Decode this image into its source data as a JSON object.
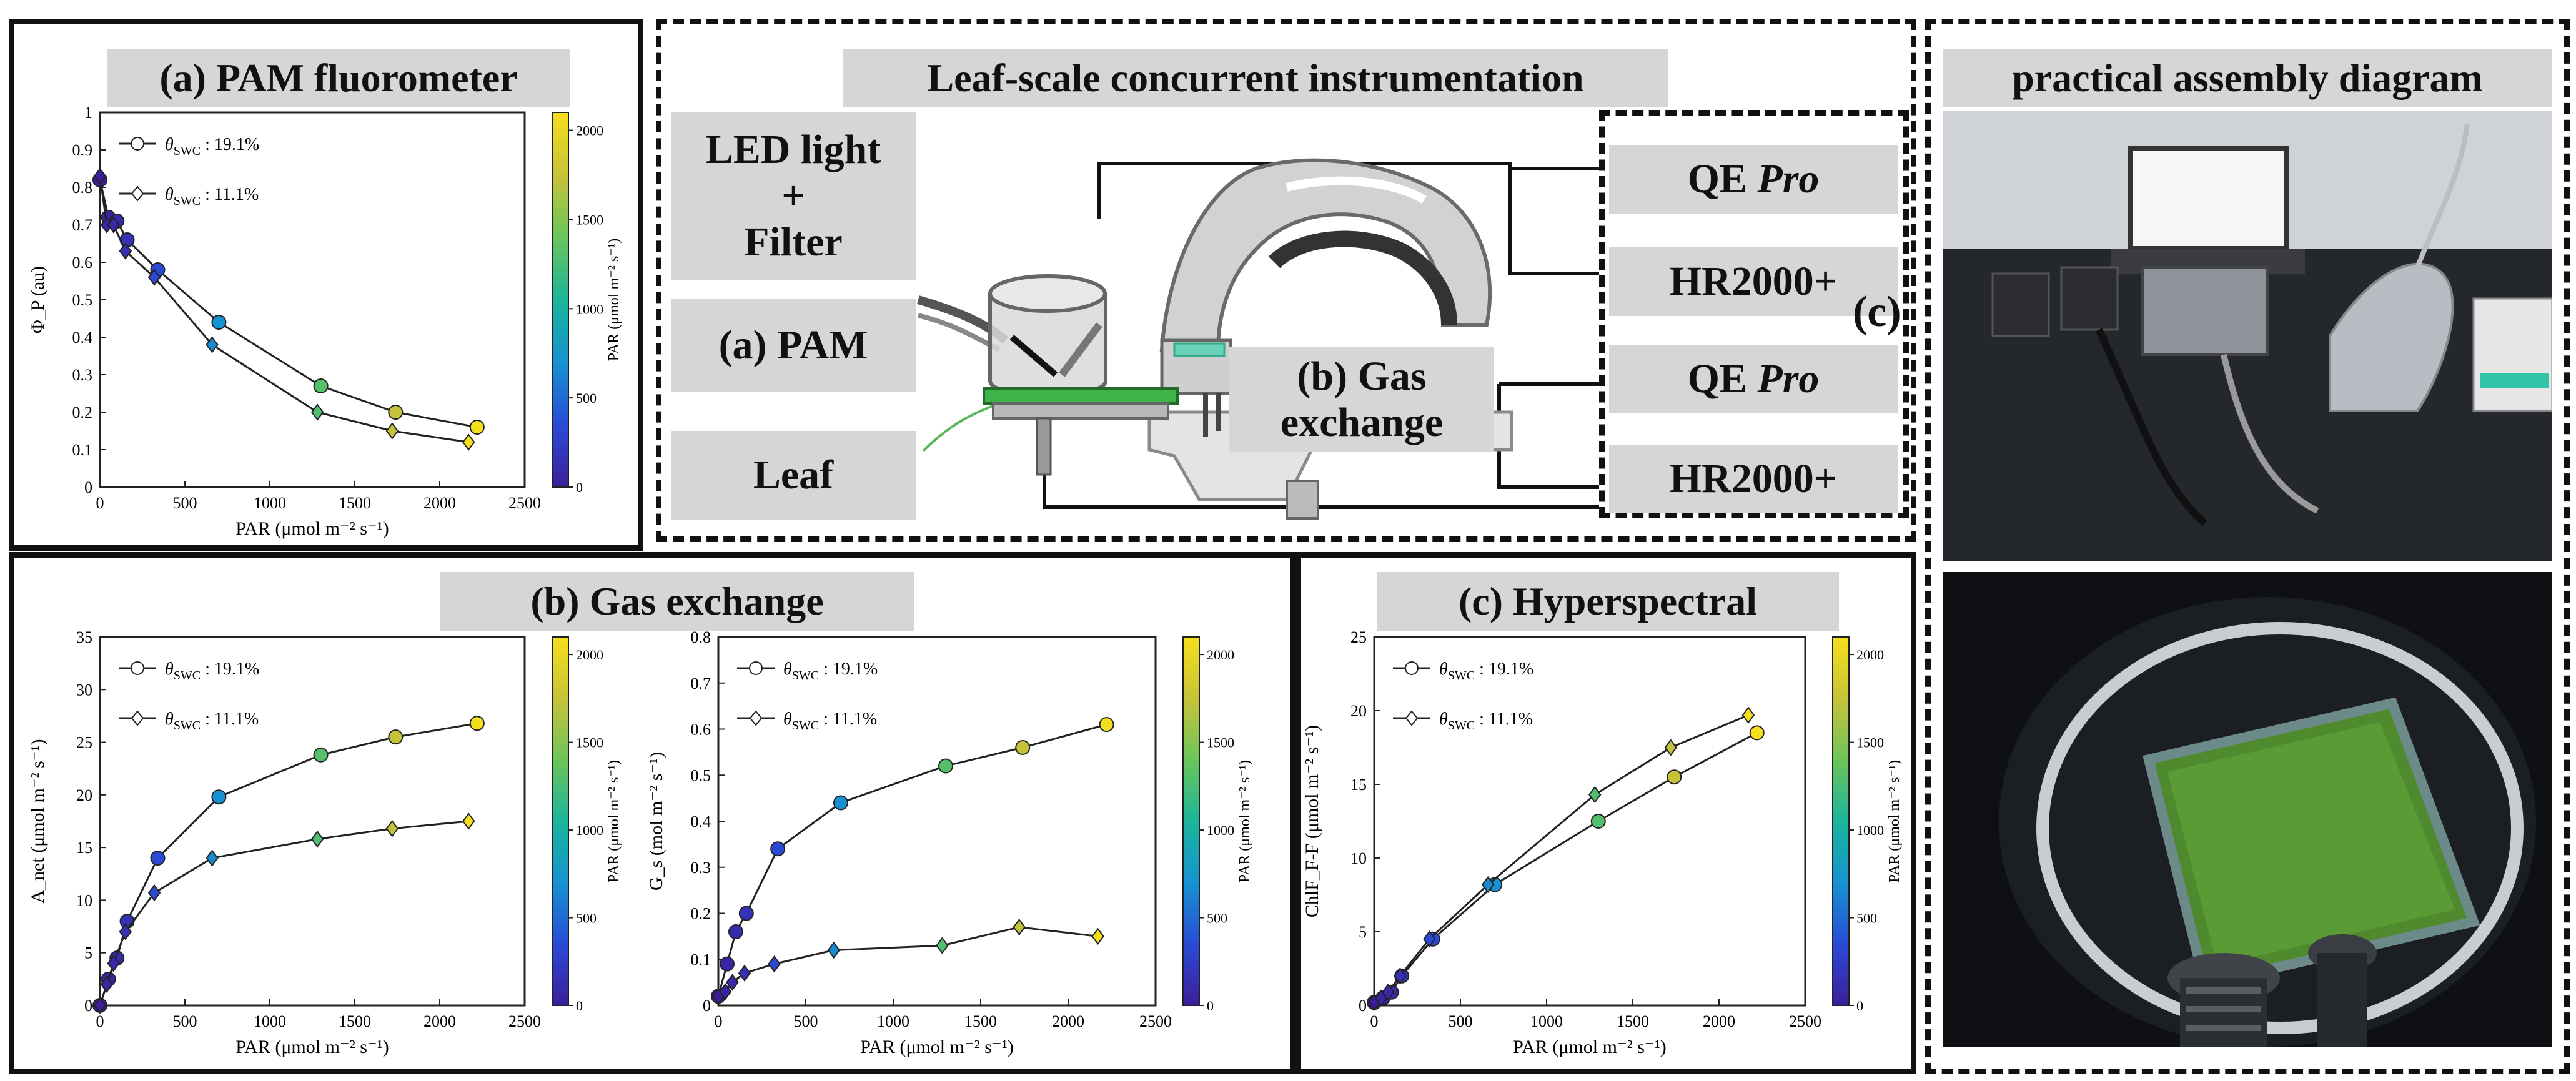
{
  "panels": {
    "pam": {
      "title": "(a) PAM fluorometer"
    },
    "center": {
      "title": "Leaf-scale concurrent instrumentation"
    },
    "assembly": {
      "title": "practical assembly diagram"
    },
    "gas": {
      "title": "(b) Gas exchange"
    },
    "hyper": {
      "title": "(c) Hyperspectral"
    }
  },
  "boxes": {
    "led": [
      "LED light",
      "+",
      "Filter"
    ],
    "pam": "(a) PAM",
    "leaf": "Leaf",
    "gas": [
      "(b) Gas",
      "exchange"
    ],
    "qe1": "QE",
    "qe1_italic": "Pro",
    "hr1": "HR2000+",
    "qe2": "QE",
    "qe2_italic": "Pro",
    "hr2": "HR2000+",
    "c_label": "(c)"
  },
  "legend": {
    "series1_prefix": "θ",
    "series1_sub": "SWC",
    "series1_text": " : 19.1%",
    "series2_prefix": "θ",
    "series2_sub": "SWC",
    "series2_text": " : 11.1%"
  },
  "colorbar": {
    "label": "PAR (μmol m⁻² s⁻¹)",
    "ticks": [
      0,
      500,
      1000,
      1500,
      2000
    ],
    "range": [
      0,
      2100
    ],
    "colors": [
      "#3d1e9a",
      "#2a4bd6",
      "#1692d2",
      "#1bb59a",
      "#6bc55a",
      "#c8c338",
      "#f5df1c"
    ]
  },
  "chart_data": [
    {
      "id": "pam",
      "type": "line",
      "xlabel": "PAR (μmol m⁻² s⁻¹)",
      "ylabel": "Φ_P (au)",
      "xlim": [
        0,
        2500
      ],
      "ylim": [
        0,
        1
      ],
      "xticks": [
        0,
        500,
        1000,
        1500,
        2000,
        2500
      ],
      "yticks": [
        0,
        0.1,
        0.2,
        0.3,
        0.4,
        0.5,
        0.6,
        0.7,
        0.8,
        0.9,
        1
      ],
      "series": [
        {
          "name": "θSWC : 19.1%",
          "marker": "circle",
          "x": [
            0,
            50,
            100,
            160,
            340,
            700,
            1300,
            1740,
            2220
          ],
          "y": [
            0.82,
            0.72,
            0.71,
            0.66,
            0.58,
            0.44,
            0.27,
            0.2,
            0.16
          ]
        },
        {
          "name": "θSWC : 11.1%",
          "marker": "diamond",
          "x": [
            0,
            40,
            80,
            150,
            320,
            660,
            1280,
            1720,
            2170
          ],
          "y": [
            0.83,
            0.7,
            0.7,
            0.63,
            0.56,
            0.38,
            0.2,
            0.15,
            0.12
          ]
        }
      ]
    },
    {
      "id": "anet",
      "type": "line",
      "xlabel": "PAR (μmol m⁻² s⁻¹)",
      "ylabel": "A_net (μmol m⁻² s⁻¹)",
      "xlim": [
        0,
        2500
      ],
      "ylim": [
        0,
        35
      ],
      "xticks": [
        0,
        500,
        1000,
        1500,
        2000,
        2500
      ],
      "yticks": [
        0,
        5,
        10,
        15,
        20,
        25,
        30,
        35
      ],
      "series": [
        {
          "name": "θSWC : 19.1%",
          "marker": "circle",
          "x": [
            0,
            50,
            100,
            160,
            340,
            700,
            1300,
            1740,
            2220
          ],
          "y": [
            0,
            2.5,
            4.5,
            8,
            14,
            19.8,
            23.8,
            25.5,
            26.8
          ]
        },
        {
          "name": "θSWC : 11.1%",
          "marker": "diamond",
          "x": [
            0,
            40,
            80,
            150,
            320,
            660,
            1280,
            1720,
            2170
          ],
          "y": [
            0,
            2,
            4,
            7,
            10.7,
            14,
            15.8,
            16.8,
            17.5
          ]
        }
      ]
    },
    {
      "id": "gs",
      "type": "line",
      "xlabel": "PAR (μmol m⁻² s⁻¹)",
      "ylabel": "G_s (mol m⁻² s⁻¹)",
      "xlim": [
        0,
        2500
      ],
      "ylim": [
        0,
        0.8
      ],
      "xticks": [
        0,
        500,
        1000,
        1500,
        2000,
        2500
      ],
      "yticks": [
        0,
        0.1,
        0.2,
        0.3,
        0.4,
        0.5,
        0.6,
        0.7,
        0.8
      ],
      "series": [
        {
          "name": "θSWC : 19.1%",
          "marker": "circle",
          "x": [
            0,
            50,
            100,
            160,
            340,
            700,
            1300,
            1740,
            2220
          ],
          "y": [
            0.02,
            0.09,
            0.16,
            0.2,
            0.34,
            0.44,
            0.52,
            0.56,
            0.61
          ]
        },
        {
          "name": "θSWC : 11.1%",
          "marker": "diamond",
          "x": [
            0,
            40,
            80,
            150,
            320,
            660,
            1280,
            1720,
            2170
          ],
          "y": [
            0.02,
            0.03,
            0.05,
            0.07,
            0.09,
            0.12,
            0.13,
            0.17,
            0.15
          ]
        }
      ]
    },
    {
      "id": "chlf",
      "type": "line",
      "xlabel": "PAR (μmol m⁻² s⁻¹)",
      "ylabel": "ChlF_F-F (μmol m⁻² s⁻¹)",
      "xlim": [
        0,
        2500
      ],
      "ylim": [
        0,
        25
      ],
      "xticks": [
        0,
        500,
        1000,
        1500,
        2000,
        2500
      ],
      "yticks": [
        0,
        5,
        10,
        15,
        20,
        25
      ],
      "series": [
        {
          "name": "θSWC : 19.1%",
          "marker": "circle",
          "x": [
            0,
            50,
            100,
            160,
            340,
            700,
            1300,
            1740,
            2220
          ],
          "y": [
            0.2,
            0.5,
            0.9,
            2,
            4.5,
            8.2,
            12.5,
            15.5,
            18.5
          ]
        },
        {
          "name": "θSWC : 11.1%",
          "marker": "diamond",
          "x": [
            0,
            40,
            80,
            150,
            320,
            660,
            1280,
            1720,
            2170
          ],
          "y": [
            0.2,
            0.5,
            0.9,
            2,
            4.5,
            8.2,
            14.3,
            17.5,
            19.7
          ]
        }
      ]
    }
  ]
}
